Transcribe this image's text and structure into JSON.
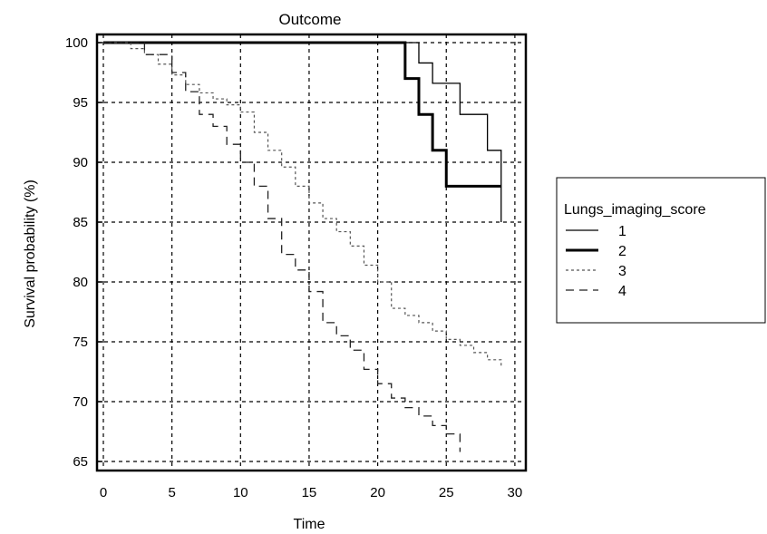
{
  "chart_data": {
    "type": "line",
    "subtype": "step (Kaplan-Meier survival curves)",
    "title": "Outcome",
    "xlabel": "Time",
    "ylabel": "Survival probability (%)",
    "xlim": [
      0,
      30
    ],
    "ylim": [
      65,
      100
    ],
    "xticks": [
      0,
      5,
      10,
      15,
      20,
      25,
      30
    ],
    "yticks": [
      65,
      70,
      75,
      80,
      85,
      90,
      95,
      100
    ],
    "grid": true,
    "legend": {
      "title": "Lungs_imaging_score",
      "placement": "right"
    },
    "series": [
      {
        "name": "1",
        "line_style": "thin solid",
        "color": "#000000",
        "x": [
          0,
          23,
          24,
          26,
          28,
          29
        ],
        "y": [
          100,
          98.3,
          96.6,
          94.0,
          91.0,
          85.0
        ]
      },
      {
        "name": "2",
        "line_style": "thick solid",
        "color": "#000000",
        "x": [
          0,
          22,
          23,
          24,
          25,
          29
        ],
        "y": [
          100,
          97.0,
          94.0,
          91.0,
          88.0,
          88.0
        ]
      },
      {
        "name": "3",
        "line_style": "short dash",
        "color": "#555555",
        "x": [
          0,
          2,
          3,
          4,
          5,
          6,
          7,
          8,
          9,
          10,
          11,
          12,
          13,
          14,
          15,
          16,
          17,
          18,
          19,
          20,
          21,
          22,
          23,
          24,
          25,
          26,
          27,
          28,
          29
        ],
        "y": [
          100,
          99.5,
          99.0,
          98.2,
          97.3,
          96.5,
          95.8,
          95.3,
          94.8,
          94.2,
          92.5,
          91.0,
          89.6,
          88.0,
          86.6,
          85.3,
          84.2,
          83.0,
          81.4,
          80.0,
          77.8,
          77.2,
          76.6,
          75.9,
          75.2,
          74.7,
          74.1,
          73.5,
          73.0
        ]
      },
      {
        "name": "4",
        "line_style": "long dash",
        "color": "#222222",
        "x": [
          0,
          3,
          5,
          6,
          7,
          8,
          9,
          10,
          11,
          12,
          13,
          14,
          15,
          16,
          17,
          18,
          19,
          20,
          21,
          22,
          23,
          24,
          25,
          26
        ],
        "y": [
          100,
          99.0,
          97.5,
          95.9,
          94.0,
          93.0,
          91.5,
          90.0,
          88.0,
          85.3,
          82.3,
          81.0,
          79.2,
          76.6,
          75.5,
          74.3,
          72.7,
          71.5,
          70.3,
          69.5,
          68.8,
          68.0,
          67.3,
          65.8
        ]
      }
    ]
  }
}
